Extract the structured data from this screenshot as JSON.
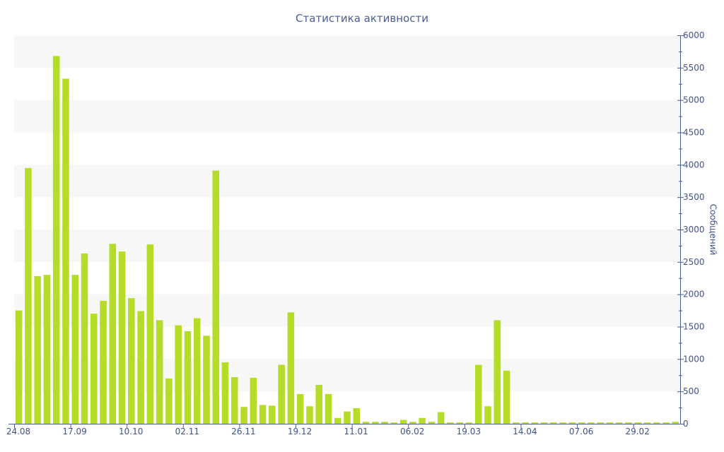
{
  "chart_data": {
    "type": "bar",
    "title": "Статистика активности",
    "ylabel": "Сообщений",
    "xlabel": "",
    "ylim": [
      0,
      6000
    ],
    "y_ticks": [
      0,
      500,
      1000,
      1500,
      2000,
      2500,
      3000,
      3500,
      4000,
      4500,
      5000,
      5500,
      6000
    ],
    "y_axis_side": "right",
    "grid": "alternating horizontal bands",
    "legend": "none",
    "x_tick_labels": [
      {
        "label": "24.08",
        "index": 0
      },
      {
        "label": "17.09",
        "index": 6
      },
      {
        "label": "10.10",
        "index": 12
      },
      {
        "label": "02.11",
        "index": 18
      },
      {
        "label": "26.11",
        "index": 24
      },
      {
        "label": "19.12",
        "index": 30
      },
      {
        "label": "11.01",
        "index": 36
      },
      {
        "label": "06.02",
        "index": 42
      },
      {
        "label": "19.03",
        "index": 48
      },
      {
        "label": "14.04",
        "index": 54
      },
      {
        "label": "07.06",
        "index": 60
      },
      {
        "label": "29.02",
        "index": 66
      }
    ],
    "series": [
      {
        "color": "#b5dc27",
        "values": [
          1750,
          3950,
          2280,
          2300,
          5680,
          5330,
          2300,
          2630,
          1700,
          1900,
          2780,
          2660,
          1940,
          1740,
          2770,
          1600,
          700,
          1520,
          1430,
          1630,
          1360,
          3910,
          950,
          720,
          260,
          710,
          290,
          280,
          910,
          1720,
          460,
          270,
          600,
          460,
          90,
          190,
          240,
          30,
          30,
          30,
          20,
          60,
          30,
          90,
          30,
          180,
          20,
          20,
          20,
          910,
          270,
          1600,
          820,
          20,
          20,
          20,
          20,
          20,
          20,
          20,
          20,
          20,
          20,
          20,
          20,
          20,
          20,
          20,
          20,
          20,
          30
        ]
      }
    ]
  },
  "colors": {
    "bar": "#b5dc27",
    "band": "#f7f7f7",
    "axis": "#4a5d94",
    "text": "#3f518b"
  }
}
